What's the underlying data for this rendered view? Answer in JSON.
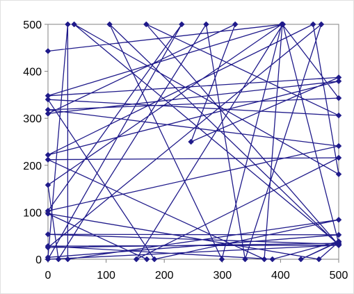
{
  "chart_data": {
    "type": "line",
    "title": "",
    "xlabel": "",
    "ylabel": "",
    "xlim": [
      0,
      500
    ],
    "ylim": [
      0,
      500
    ],
    "x_ticks": [
      0,
      100,
      200,
      300,
      400,
      500
    ],
    "y_ticks": [
      0,
      100,
      200,
      300,
      400,
      500
    ],
    "grid": false,
    "legend": "none",
    "series": [
      {
        "marker": "diamond",
        "color": "#1f1a8a",
        "points": [
          [
            0,
            443
          ],
          [
            404,
            500
          ],
          [
            0,
            348
          ],
          [
            500,
            387
          ],
          [
            246,
            250
          ],
          [
            322,
            500
          ],
          [
            0,
            310
          ],
          [
            500,
            379
          ],
          [
            0,
            222
          ],
          [
            456,
            500
          ],
          [
            500,
            181
          ],
          [
            45,
            500
          ],
          [
            500,
            32
          ],
          [
            0,
            53
          ],
          [
            500,
            52
          ],
          [
            0,
            4
          ],
          [
            34,
            500
          ],
          [
            34,
            0
          ],
          [
            500,
            84
          ],
          [
            183,
            0
          ],
          [
            0,
            340
          ],
          [
            500,
            306
          ],
          [
            169,
            500
          ],
          [
            500,
            30
          ],
          [
            0,
            0
          ],
          [
            230,
            500
          ],
          [
            0,
            103
          ],
          [
            500,
            241
          ],
          [
            0,
            318
          ],
          [
            500,
            343
          ],
          [
            403,
            500
          ],
          [
            372,
            0
          ],
          [
            0,
            212
          ],
          [
            500,
            216
          ],
          [
            152,
            0
          ],
          [
            404,
            500
          ],
          [
            500,
            34
          ],
          [
            0,
            25
          ],
          [
            470,
            500
          ],
          [
            339,
            0
          ],
          [
            272,
            500
          ],
          [
            18,
            0
          ],
          [
            0,
            158
          ],
          [
            402,
            500
          ],
          [
            299,
            0
          ],
          [
            106,
            500
          ],
          [
            500,
            30
          ],
          [
            0,
            28
          ],
          [
            386,
            0
          ],
          [
            500,
            38
          ],
          [
            435,
            0
          ],
          [
            500,
            37
          ],
          [
            466,
            0
          ],
          [
            0,
            97
          ],
          [
            170,
            0
          ]
        ]
      }
    ]
  }
}
